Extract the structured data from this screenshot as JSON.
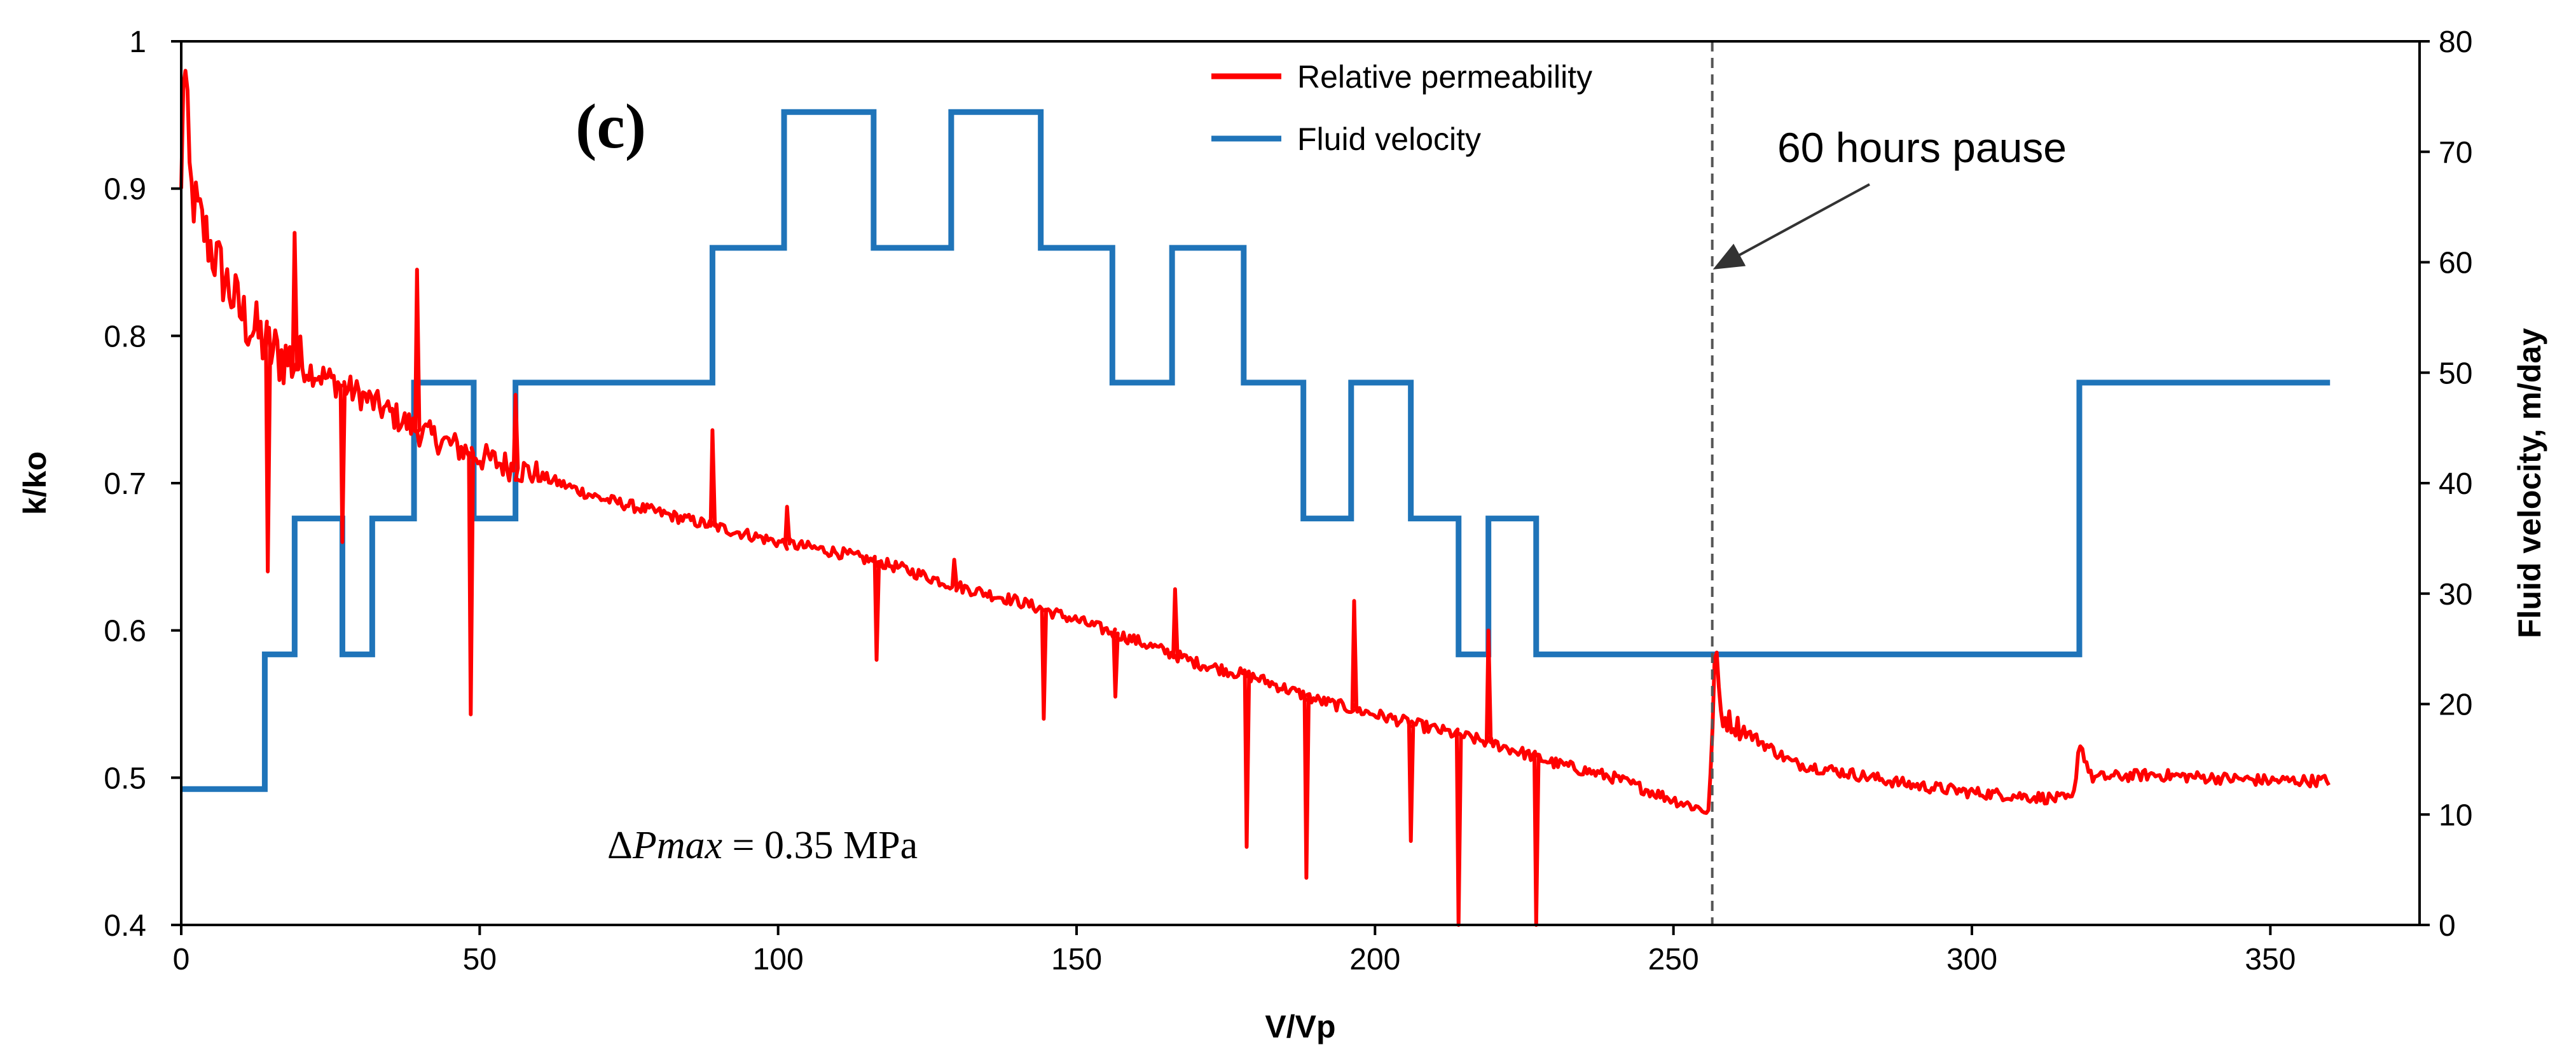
{
  "chart_data": {
    "type": "line",
    "panel_label": {
      "open": "(",
      "letter": "c",
      "close": ")"
    },
    "xlabel": "V/Vp",
    "ylabel_left": "k/ko",
    "ylabel_right": "Fluid velocity, m/day",
    "xlim": [
      0,
      375
    ],
    "ylim_left": [
      0.4,
      1.0
    ],
    "ylim_right": [
      0,
      80
    ],
    "x_ticks": [
      "0",
      "50",
      "100",
      "150",
      "200",
      "250",
      "300",
      "350"
    ],
    "y_left_ticks": [
      "0.4",
      "0.5",
      "0.6",
      "0.7",
      "0.8",
      "0.9",
      "1"
    ],
    "y_right_ticks": [
      "0",
      "10",
      "20",
      "30",
      "40",
      "50",
      "60",
      "70",
      "80"
    ],
    "grid": false,
    "legend": {
      "position": "top-center",
      "entries": [
        "Relative permeability",
        "Fluid velocity"
      ]
    },
    "series": [
      {
        "name": "Fluid velocity",
        "axis": "right",
        "color": "#1f74b9",
        "step": true,
        "x": [
          0,
          14,
          19,
          27,
          32,
          39,
          49,
          56,
          89,
          101,
          116,
          129,
          144,
          156,
          166,
          178,
          188,
          196,
          206,
          214,
          219,
          227,
          318,
          360
        ],
        "values": [
          12.3,
          24.5,
          36.8,
          24.5,
          36.8,
          49.1,
          36.8,
          49.1,
          61.3,
          73.6,
          61.3,
          73.6,
          61.3,
          49.1,
          61.3,
          49.1,
          36.8,
          49.1,
          36.8,
          24.5,
          36.8,
          24.5,
          49.1,
          49.1
        ]
      },
      {
        "name": "Relative permeability",
        "axis": "left",
        "color": "#ff0000",
        "x": [
          0,
          0.5,
          1.5,
          3,
          6,
          10,
          15,
          20,
          25,
          30,
          40,
          50,
          60,
          70,
          80,
          90,
          100,
          110,
          120,
          130,
          140,
          150,
          160,
          170,
          180,
          190,
          200,
          210,
          220,
          230,
          240,
          250,
          256,
          257,
          258,
          270,
          290,
          300,
          310,
          317,
          318,
          320,
          330,
          340,
          350,
          360
        ],
        "values": [
          0.9,
          1.0,
          0.9,
          0.88,
          0.85,
          0.815,
          0.79,
          0.78,
          0.77,
          0.76,
          0.735,
          0.718,
          0.705,
          0.69,
          0.68,
          0.67,
          0.66,
          0.653,
          0.643,
          0.63,
          0.62,
          0.607,
          0.593,
          0.578,
          0.568,
          0.553,
          0.543,
          0.533,
          0.523,
          0.51,
          0.5,
          0.485,
          0.477,
          0.59,
          0.542,
          0.51,
          0.495,
          0.49,
          0.487,
          0.485,
          0.525,
          0.5,
          0.502,
          0.5,
          0.498,
          0.498
        ],
        "spikes": [
          {
            "x": 14.5,
            "value": 0.64
          },
          {
            "x": 19,
            "value": 0.87
          },
          {
            "x": 27,
            "value": 0.66
          },
          {
            "x": 39.5,
            "value": 0.845
          },
          {
            "x": 48.5,
            "value": 0.543
          },
          {
            "x": 56,
            "value": 0.76
          },
          {
            "x": 89,
            "value": 0.736
          },
          {
            "x": 101.5,
            "value": 0.684
          },
          {
            "x": 116.5,
            "value": 0.58
          },
          {
            "x": 129.5,
            "value": 0.648
          },
          {
            "x": 144.5,
            "value": 0.54
          },
          {
            "x": 156.5,
            "value": 0.555
          },
          {
            "x": 166.5,
            "value": 0.628
          },
          {
            "x": 178.5,
            "value": 0.453
          },
          {
            "x": 188.5,
            "value": 0.432
          },
          {
            "x": 196.5,
            "value": 0.62
          },
          {
            "x": 206,
            "value": 0.457
          },
          {
            "x": 214,
            "value": 0.4
          },
          {
            "x": 219,
            "value": 0.6
          },
          {
            "x": 227,
            "value": 0.4
          }
        ]
      }
    ],
    "annotations": {
      "pause_x": 256.5,
      "pause_text": "60 hours pause",
      "dp_delta": "Δ",
      "dp_symbol": "Pmax",
      "dp_value": " = 0.35 MPa"
    }
  }
}
